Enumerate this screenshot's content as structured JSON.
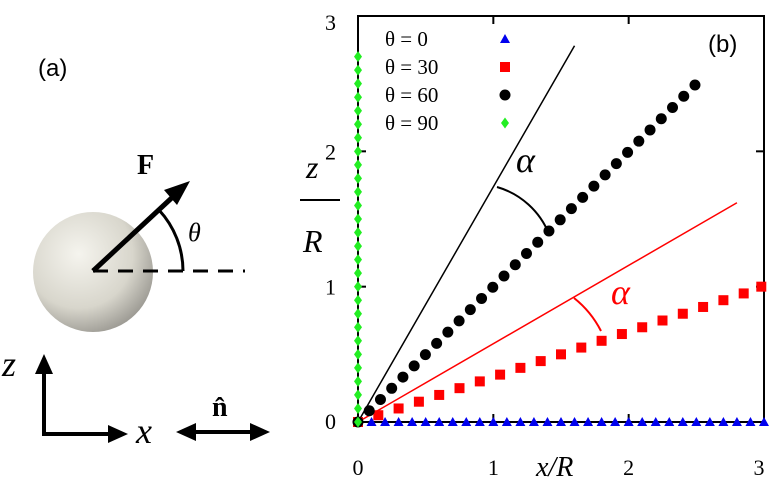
{
  "panel_a": {
    "label": "(a)",
    "force_label": "F",
    "angle_label": "θ",
    "z_axis_label": "z",
    "x_axis_label": "x",
    "normal_label": "n̂"
  },
  "chart_data": {
    "type": "scatter",
    "panel_label": "(b)",
    "xlabel": "x/R",
    "ylabel_num": "z",
    "ylabel_den": "R",
    "xlim": [
      0,
      3
    ],
    "ylim": [
      0,
      3
    ],
    "xticks": [
      "0",
      "1",
      "2",
      "3"
    ],
    "yticks": [
      "0",
      "1",
      "2",
      "3"
    ],
    "grid": false,
    "legend_position": "top-left",
    "series": [
      {
        "name": "θ = 0",
        "marker": "triangle",
        "color": "#0000ee",
        "x": [
          0,
          0.1,
          0.2,
          0.3,
          0.4,
          0.5,
          0.6,
          0.7,
          0.8,
          0.9,
          1.0,
          1.1,
          1.2,
          1.3,
          1.4,
          1.5,
          1.6,
          1.7,
          1.8,
          1.9,
          2.0,
          2.1,
          2.2,
          2.3,
          2.4,
          2.5,
          2.6,
          2.7,
          2.8,
          2.9,
          3.0
        ],
        "y": [
          0,
          0,
          0,
          0,
          0,
          0,
          0,
          0,
          0,
          0,
          0,
          0,
          0,
          0,
          0,
          0,
          0,
          0,
          0,
          0,
          0,
          0,
          0,
          0,
          0,
          0,
          0,
          0,
          0,
          0,
          0
        ]
      },
      {
        "name": "θ = 30",
        "marker": "square",
        "color": "#ff0000",
        "x": [
          0,
          0.15,
          0.3,
          0.45,
          0.6,
          0.75,
          0.9,
          1.05,
          1.2,
          1.35,
          1.5,
          1.65,
          1.8,
          1.95,
          2.1,
          2.25,
          2.4,
          2.55,
          2.7,
          2.85,
          2.98
        ],
        "y": [
          0,
          0.05,
          0.1,
          0.15,
          0.2,
          0.25,
          0.3,
          0.35,
          0.4,
          0.45,
          0.5,
          0.55,
          0.6,
          0.65,
          0.7,
          0.75,
          0.8,
          0.85,
          0.9,
          0.95,
          1.0
        ]
      },
      {
        "name": "θ = 60",
        "marker": "circle",
        "color": "#000000",
        "x": [
          0,
          0.083,
          0.166,
          0.249,
          0.332,
          0.415,
          0.498,
          0.581,
          0.664,
          0.747,
          0.83,
          0.913,
          0.996,
          1.079,
          1.162,
          1.245,
          1.328,
          1.411,
          1.494,
          1.577,
          1.66,
          1.743,
          1.826,
          1.909,
          1.992,
          2.075,
          2.158,
          2.241,
          2.324,
          2.407,
          2.49
        ],
        "y": [
          0,
          0.083,
          0.166,
          0.249,
          0.332,
          0.415,
          0.498,
          0.581,
          0.664,
          0.747,
          0.83,
          0.913,
          0.996,
          1.079,
          1.162,
          1.245,
          1.328,
          1.411,
          1.494,
          1.577,
          1.66,
          1.743,
          1.826,
          1.909,
          1.992,
          2.075,
          2.158,
          2.241,
          2.324,
          2.407,
          2.49
        ]
      },
      {
        "name": "θ = 90",
        "marker": "diamond",
        "color": "#22ee22",
        "x": [
          0,
          0,
          0,
          0,
          0,
          0,
          0,
          0,
          0,
          0,
          0,
          0,
          0,
          0,
          0,
          0,
          0,
          0,
          0,
          0,
          0,
          0,
          0,
          0,
          0,
          0,
          0,
          0
        ],
        "y": [
          0,
          0.1,
          0.2,
          0.3,
          0.4,
          0.5,
          0.6,
          0.7,
          0.8,
          0.9,
          1.0,
          1.1,
          1.2,
          1.3,
          1.4,
          1.5,
          1.6,
          1.7,
          1.8,
          1.9,
          2.0,
          2.1,
          2.2,
          2.3,
          2.4,
          2.5,
          2.6,
          2.7
        ]
      }
    ],
    "reference_lines": [
      {
        "name": "force-direction-60",
        "color": "#000000",
        "x": [
          0,
          1.6
        ],
        "y": [
          0,
          2.78
        ]
      },
      {
        "name": "force-direction-30",
        "color": "#ff0000",
        "x": [
          0,
          2.8
        ],
        "y": [
          0,
          1.62
        ]
      }
    ],
    "annotations": [
      {
        "text": "α",
        "color": "#000000"
      },
      {
        "text": "α",
        "color": "#ff0000"
      }
    ]
  }
}
